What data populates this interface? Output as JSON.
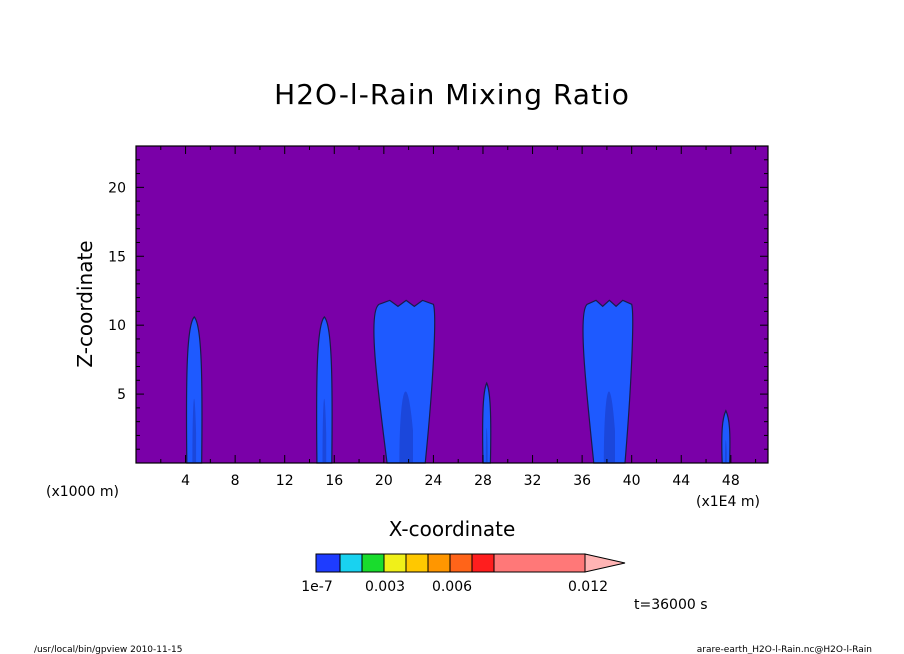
{
  "colors": {
    "background": "#7a00a8",
    "rain_fill": "#1e5aff",
    "rain_dark": "#1a3fcc",
    "contour": "#1a1a4a"
  },
  "chart_data": {
    "type": "contour",
    "title": "H2O-l-Rain Mixing Ratio",
    "xlabel": "X-coordinate",
    "ylabel": "Z-coordinate",
    "x_units_left": "(x1000 m)",
    "x_units_right": "(x1E4 m)",
    "xlim": [
      0,
      51
    ],
    "ylim": [
      0,
      23
    ],
    "x_ticks": [
      "4",
      "8",
      "12",
      "16",
      "20",
      "24",
      "28",
      "32",
      "36",
      "40",
      "44",
      "48"
    ],
    "y_ticks": [
      "5",
      "10",
      "15",
      "20"
    ],
    "time_label": "t=36000 s",
    "colorbar": {
      "colors": [
        "#1e3cff",
        "#19d2f0",
        "#19dc2d",
        "#f0f019",
        "#ffc800",
        "#ff9600",
        "#ff6419",
        "#ff1e1e",
        "#ff7878",
        "#ffb4b4"
      ],
      "labels": [
        "1e-7",
        "0.003",
        "0.006",
        "0.012"
      ]
    },
    "cells": [
      {
        "x_center": 4.7,
        "x_halfwidth": 0.6,
        "top": 10.6
      },
      {
        "x_center": 15.2,
        "x_halfwidth": 0.6,
        "top": 10.6
      },
      {
        "x_center": 21.8,
        "x_halfwidth": 2.2,
        "top": 11.8
      },
      {
        "x_center": 28.3,
        "x_halfwidth": 0.3,
        "top": 5.8
      },
      {
        "x_center": 38.2,
        "x_halfwidth": 1.8,
        "top": 11.8
      },
      {
        "x_center": 47.6,
        "x_halfwidth": 0.3,
        "top": 3.8
      }
    ]
  },
  "footer": {
    "left": "/usr/local/bin/gpview   2010-11-15",
    "right": "arare-earth_H2O-l-Rain.nc@H2O-l-Rain"
  }
}
